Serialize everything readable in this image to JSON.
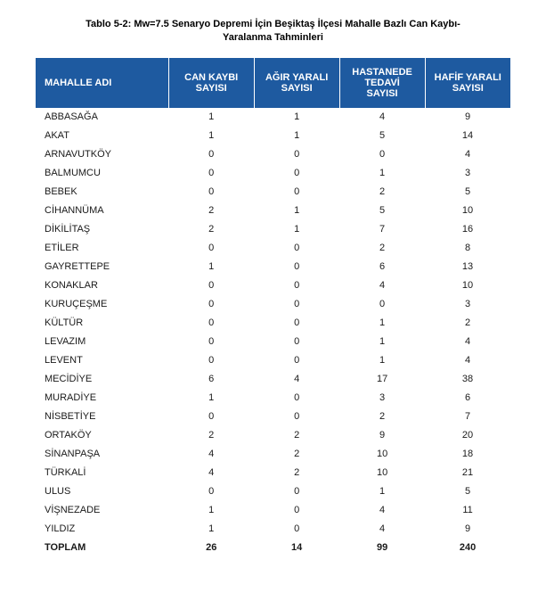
{
  "caption": {
    "line1": "Tablo 5-2: Mw=7.5 Senaryo Depremi İçin Beşiktaş İlçesi Mahalle Bazlı Can Kaybı-",
    "line2": "Yaralanma Tahminleri"
  },
  "table": {
    "header_bg": "#1e5aa0",
    "header_fg": "#ffffff",
    "columns": [
      "MAHALLE ADI",
      "CAN KAYBI SAYISI",
      "AĞIR YARALI SAYISI",
      "HASTANEDE TEDAVİ SAYISI",
      "HAFİF YARALI SAYISI"
    ],
    "rows": [
      [
        "ABBASAĞA",
        "1",
        "1",
        "4",
        "9"
      ],
      [
        "AKAT",
        "1",
        "1",
        "5",
        "14"
      ],
      [
        "ARNAVUTKÖY",
        "0",
        "0",
        "0",
        "4"
      ],
      [
        "BALMUMCU",
        "0",
        "0",
        "1",
        "3"
      ],
      [
        "BEBEK",
        "0",
        "0",
        "2",
        "5"
      ],
      [
        "CİHANNÜMA",
        "2",
        "1",
        "5",
        "10"
      ],
      [
        "DİKİLİTAŞ",
        "2",
        "1",
        "7",
        "16"
      ],
      [
        "ETİLER",
        "0",
        "0",
        "2",
        "8"
      ],
      [
        "GAYRETTEPE",
        "1",
        "0",
        "6",
        "13"
      ],
      [
        "KONAKLAR",
        "0",
        "0",
        "4",
        "10"
      ],
      [
        "KURUÇEŞME",
        "0",
        "0",
        "0",
        "3"
      ],
      [
        "KÜLTÜR",
        "0",
        "0",
        "1",
        "2"
      ],
      [
        "LEVAZIM",
        "0",
        "0",
        "1",
        "4"
      ],
      [
        "LEVENT",
        "0",
        "0",
        "1",
        "4"
      ],
      [
        "MECİDİYE",
        "6",
        "4",
        "17",
        "38"
      ],
      [
        "MURADİYE",
        "1",
        "0",
        "3",
        "6"
      ],
      [
        "NİSBETİYE",
        "0",
        "0",
        "2",
        "7"
      ],
      [
        "ORTAKÖY",
        "2",
        "2",
        "9",
        "20"
      ],
      [
        "SİNANPAŞA",
        "4",
        "2",
        "10",
        "18"
      ],
      [
        "TÜRKALİ",
        "4",
        "2",
        "10",
        "21"
      ],
      [
        "ULUS",
        "0",
        "0",
        "1",
        "5"
      ],
      [
        "VİŞNEZADE",
        "1",
        "0",
        "4",
        "11"
      ],
      [
        "YILDIZ",
        "1",
        "0",
        "4",
        "9"
      ]
    ],
    "total_row": [
      "TOPLAM",
      "26",
      "14",
      "99",
      "240"
    ]
  }
}
